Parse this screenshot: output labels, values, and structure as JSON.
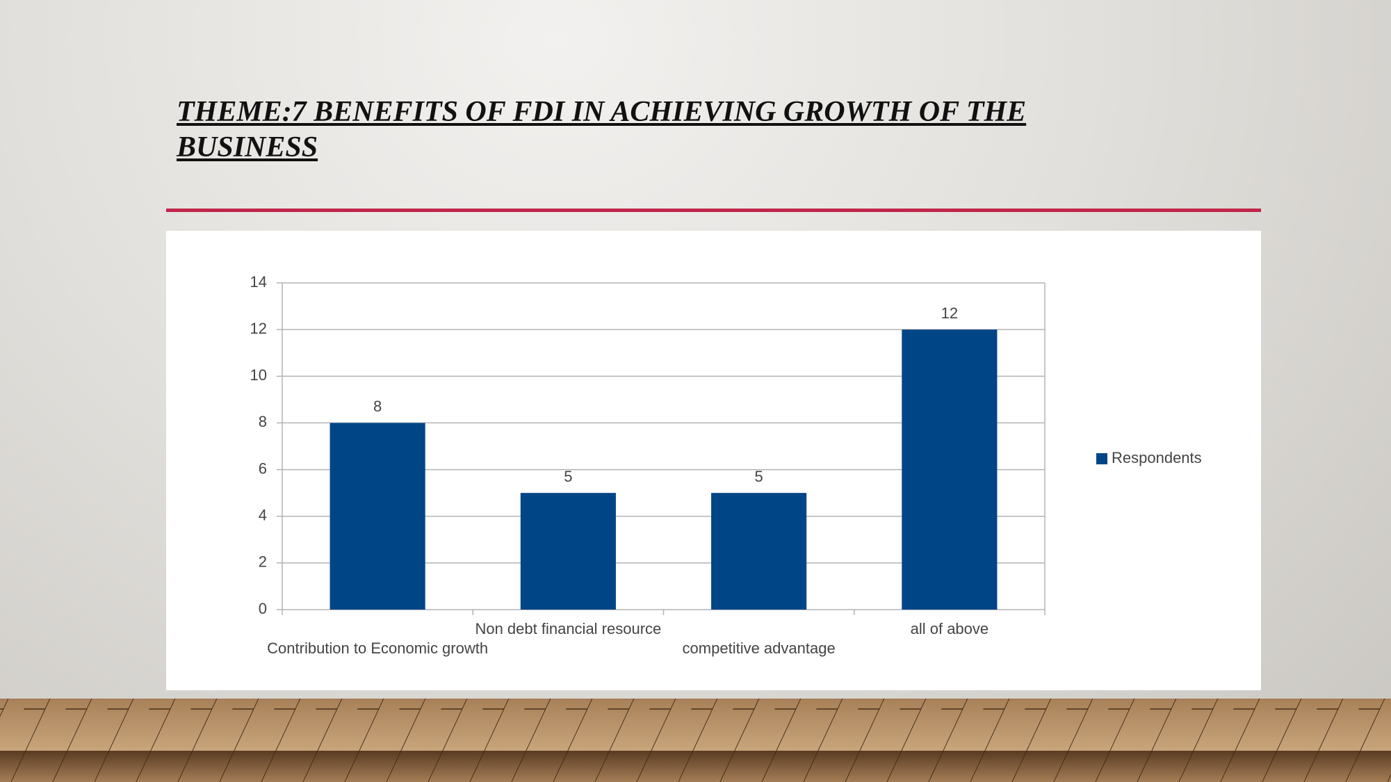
{
  "slide": {
    "title": "THEME:7 BENEFITS OF FDI IN ACHIEVING GROWTH OF THE BUSINESS"
  },
  "chart_data": {
    "type": "bar",
    "categories": [
      "Contribution to Economic growth",
      "Non debt financial resource",
      "competitive advantage",
      "all of above"
    ],
    "series": [
      {
        "name": "Respondents",
        "color": "#004586",
        "values": [
          8,
          5,
          5,
          12
        ]
      }
    ],
    "ylim": [
      0,
      14
    ],
    "yticks": [
      0,
      2,
      4,
      6,
      8,
      10,
      12,
      14
    ],
    "grid": true,
    "legend": "right",
    "data_labels": true
  }
}
